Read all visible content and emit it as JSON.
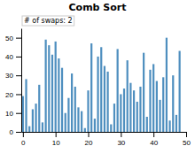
{
  "chart_data": {
    "type": "bar",
    "title": "Comb Sort",
    "series": [
      {
        "name": "# of swaps: 2",
        "color": "#4f8fbf",
        "values": [
          19,
          28,
          3,
          12,
          15,
          25,
          5,
          49,
          46,
          41,
          48,
          39,
          34,
          10,
          18,
          31,
          24,
          13,
          11,
          2,
          22,
          47,
          7,
          40,
          45,
          35,
          32,
          4,
          15,
          44,
          20,
          23,
          38,
          26,
          22,
          16,
          24,
          42,
          8,
          33,
          36,
          27,
          17,
          29,
          50,
          6,
          30,
          9,
          43,
          0
        ]
      }
    ],
    "xlim": [
      -0.5,
      50
    ],
    "xticks": [
      0,
      10,
      20,
      30,
      40,
      50
    ],
    "ylim": [
      0,
      55
    ],
    "yticks": [
      0,
      10,
      20,
      30,
      40,
      50
    ],
    "legend": "upper left"
  }
}
